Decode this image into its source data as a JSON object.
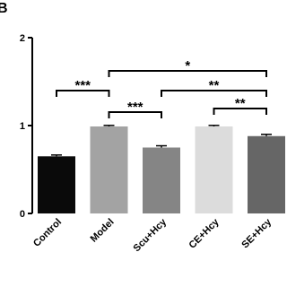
{
  "chart_data": {
    "type": "bar",
    "panel_label": "B",
    "categories": [
      "Control",
      "Model",
      "Scu+Hcy",
      "CE+Hcy",
      "SE+Hcy"
    ],
    "values": [
      0.65,
      0.99,
      0.75,
      0.99,
      0.88
    ],
    "errors": [
      0.015,
      0.012,
      0.02,
      0.012,
      0.02
    ],
    "colors": [
      "#0a0a0a",
      "#a3a3a3",
      "#858585",
      "#dcdcdc",
      "#666666"
    ],
    "ylim": [
      0,
      2
    ],
    "yticks": [
      0,
      1,
      2
    ],
    "annotations": [
      "***",
      "*",
      "***",
      "**",
      "**"
    ]
  }
}
